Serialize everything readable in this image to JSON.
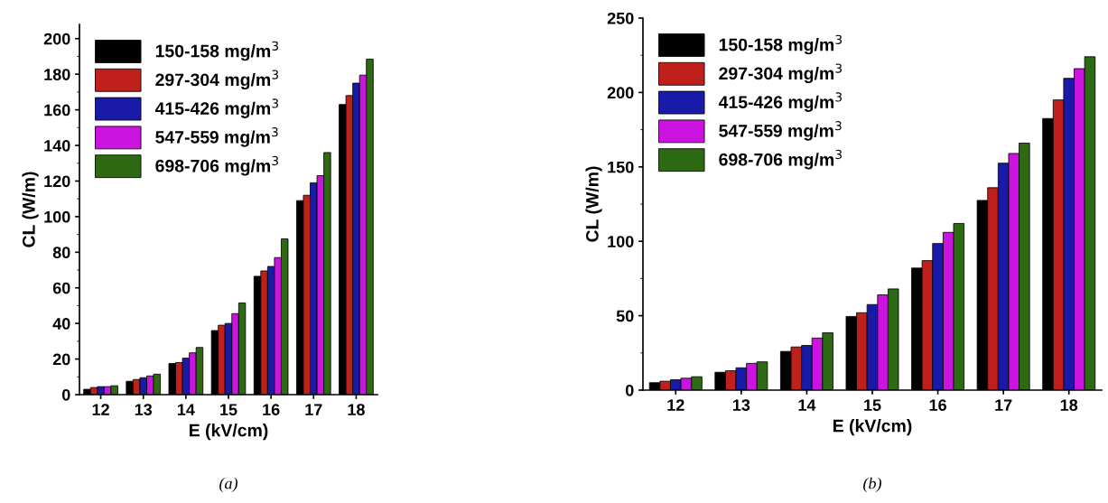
{
  "chart_data": [
    {
      "type": "bar",
      "xlabel": "E (kV/cm)",
      "ylabel": "CL (W/m)",
      "categories": [
        "12",
        "13",
        "14",
        "15",
        "16",
        "17",
        "18"
      ],
      "ylim": [
        0,
        208
      ],
      "yticks": [
        0,
        20,
        40,
        60,
        80,
        100,
        120,
        140,
        160,
        180,
        200
      ],
      "legend": "top left",
      "grid": false,
      "annotations": [
        "(a)"
      ],
      "series": [
        {
          "name": "150-158 mg/m$^{3}$",
          "color": "#000000",
          "values": [
            3,
            7.5,
            17.5,
            36,
            66.5,
            109,
            163
          ]
        },
        {
          "name": "297-304 mg/m$^{3}$",
          "color": "#c0201c",
          "values": [
            4,
            8.5,
            18,
            39,
            69.5,
            112,
            168
          ]
        },
        {
          "name": "415-426 mg/m$^{3}$",
          "color": "#1a1aa8",
          "values": [
            4.5,
            9.5,
            20.5,
            40,
            72,
            119,
            175
          ]
        },
        {
          "name": "547-559 mg/m$^{3}$",
          "color": "#cc14e0",
          "values": [
            4.5,
            10.5,
            23.5,
            45.5,
            77,
            123,
            179.5
          ]
        },
        {
          "name": "698-706 mg/m$^{3}$",
          "color": "#2e6a14",
          "values": [
            5,
            11.5,
            26.5,
            51.5,
            87.5,
            136,
            188.5
          ]
        }
      ]
    },
    {
      "type": "bar",
      "xlabel": "E (kV/cm)",
      "ylabel": "CL (W/m)",
      "categories": [
        "12",
        "13",
        "14",
        "15",
        "16",
        "17",
        "18"
      ],
      "ylim": [
        0,
        250
      ],
      "yticks": [
        0,
        50,
        100,
        150,
        200,
        250
      ],
      "legend": "top left",
      "grid": false,
      "annotations": [
        "(b)"
      ],
      "series": [
        {
          "name": "150-158 mg/m$^{3}$",
          "color": "#000000",
          "values": [
            5,
            12,
            26,
            49.5,
            82,
            127.5,
            182.5
          ]
        },
        {
          "name": "297-304 mg/m$^{3}$",
          "color": "#c0201c",
          "values": [
            6,
            13,
            29,
            52,
            87,
            136,
            195
          ]
        },
        {
          "name": "415-426 mg/m$^{3}$",
          "color": "#1a1aa8",
          "values": [
            7,
            15,
            30,
            57.5,
            98.5,
            152.5,
            209.5
          ]
        },
        {
          "name": "547-559 mg/m$^{3}$",
          "color": "#cc14e0",
          "values": [
            8,
            18,
            35,
            64,
            106,
            159,
            216
          ]
        },
        {
          "name": "698-706 mg/m$^{3}$",
          "color": "#2e6a14",
          "values": [
            9,
            19,
            38.5,
            68,
            112,
            166,
            224
          ]
        }
      ]
    }
  ]
}
